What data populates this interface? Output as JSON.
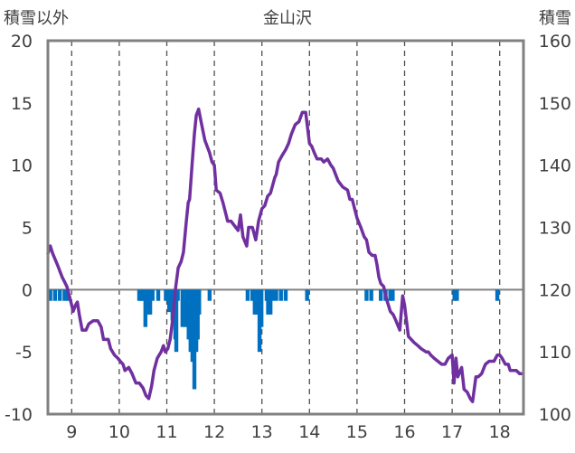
{
  "chart_data": {
    "type": "bar+line",
    "title": "金山沢",
    "left_axis_label": "積雪以外",
    "right_axis_label": "積雪",
    "left_ylim": [
      -10,
      20
    ],
    "left_ticks": [
      "-10",
      "-5",
      "0",
      "5",
      "10",
      "15",
      "20"
    ],
    "right_ylim": [
      100,
      160
    ],
    "right_ticks": [
      "100",
      "110",
      "120",
      "130",
      "140",
      "150",
      "160"
    ],
    "xlim": [
      8.5,
      18.5
    ],
    "x_ticks": [
      "9",
      "10",
      "11",
      "12",
      "13",
      "14",
      "15",
      "16",
      "17",
      "18"
    ],
    "grid": "dashed vertical",
    "colors": {
      "line": "#7030A0",
      "bars": "#0070C0",
      "frame": "#808080"
    },
    "series": [
      {
        "type": "bar",
        "axis": "left",
        "points": [
          [
            8.55,
            -0.9
          ],
          [
            8.65,
            -0.9
          ],
          [
            8.75,
            -0.9
          ],
          [
            8.85,
            -0.9
          ],
          [
            8.92,
            -0.9
          ],
          [
            10.42,
            -0.9
          ],
          [
            10.46,
            -0.9
          ],
          [
            10.5,
            -0.9
          ],
          [
            10.55,
            -3.0
          ],
          [
            10.6,
            -2.0
          ],
          [
            10.65,
            -2.0
          ],
          [
            10.7,
            -0.9
          ],
          [
            10.82,
            -0.9
          ],
          [
            10.98,
            -0.9
          ],
          [
            11.05,
            -1.8
          ],
          [
            11.12,
            -2.5
          ],
          [
            11.18,
            -4.0
          ],
          [
            11.2,
            -5.0
          ],
          [
            11.23,
            -0.9
          ],
          [
            11.33,
            -3.0
          ],
          [
            11.38,
            -3.0
          ],
          [
            11.42,
            -3.0
          ],
          [
            11.46,
            -4.0
          ],
          [
            11.5,
            -5.0
          ],
          [
            11.54,
            -5.8
          ],
          [
            11.58,
            -8.0
          ],
          [
            11.62,
            -5.0
          ],
          [
            11.65,
            -4.0
          ],
          [
            11.68,
            -2.0
          ],
          [
            11.9,
            -0.9
          ],
          [
            12.7,
            -0.9
          ],
          [
            12.8,
            -0.9
          ],
          [
            12.85,
            -2.0
          ],
          [
            12.9,
            -2.0
          ],
          [
            12.95,
            -5.0
          ],
          [
            12.99,
            -3.0
          ],
          [
            13.1,
            -0.9
          ],
          [
            13.13,
            -2.0
          ],
          [
            13.18,
            -2.0
          ],
          [
            13.22,
            -0.9
          ],
          [
            13.3,
            -0.9
          ],
          [
            13.4,
            -0.9
          ],
          [
            13.5,
            -0.9
          ],
          [
            13.95,
            -0.9
          ],
          [
            15.2,
            -0.9
          ],
          [
            15.3,
            -0.9
          ],
          [
            15.5,
            -0.9
          ],
          [
            15.6,
            -0.9
          ],
          [
            15.7,
            -0.9
          ],
          [
            15.75,
            -0.9
          ],
          [
            17.05,
            -0.9
          ],
          [
            17.1,
            -0.9
          ],
          [
            17.95,
            -0.9
          ]
        ]
      },
      {
        "type": "line",
        "axis": "right",
        "points": [
          [
            8.5,
            125.8
          ],
          [
            8.55,
            127.0
          ],
          [
            8.6,
            125.8
          ],
          [
            8.7,
            124.0
          ],
          [
            8.8,
            122.0
          ],
          [
            8.9,
            120.5
          ],
          [
            8.95,
            119.0
          ],
          [
            9.0,
            117.5
          ],
          [
            9.03,
            116.5
          ],
          [
            9.08,
            117.5
          ],
          [
            9.12,
            118.0
          ],
          [
            9.16,
            116.0
          ],
          [
            9.22,
            113.5
          ],
          [
            9.3,
            113.5
          ],
          [
            9.36,
            114.5
          ],
          [
            9.45,
            115.0
          ],
          [
            9.55,
            115.0
          ],
          [
            9.62,
            114.0
          ],
          [
            9.67,
            112.0
          ],
          [
            9.77,
            112.0
          ],
          [
            9.82,
            110.5
          ],
          [
            9.9,
            109.5
          ],
          [
            9.97,
            109.0
          ],
          [
            10.02,
            108.5
          ],
          [
            10.08,
            108.0
          ],
          [
            10.12,
            107.0
          ],
          [
            10.2,
            107.5
          ],
          [
            10.27,
            106.5
          ],
          [
            10.35,
            105.0
          ],
          [
            10.42,
            105.0
          ],
          [
            10.5,
            104.2
          ],
          [
            10.56,
            103.0
          ],
          [
            10.62,
            102.5
          ],
          [
            10.68,
            104.5
          ],
          [
            10.73,
            107.0
          ],
          [
            10.8,
            109.0
          ],
          [
            10.88,
            110.0
          ],
          [
            10.93,
            111.0
          ],
          [
            10.97,
            110.0
          ],
          [
            11.02,
            110.5
          ],
          [
            11.07,
            112.0
          ],
          [
            11.12,
            115.0
          ],
          [
            11.18,
            120.0
          ],
          [
            11.24,
            123.5
          ],
          [
            11.3,
            124.5
          ],
          [
            11.35,
            126.0
          ],
          [
            11.41,
            131.0
          ],
          [
            11.45,
            134.0
          ],
          [
            11.48,
            134.5
          ],
          [
            11.53,
            140.0
          ],
          [
            11.58,
            145.0
          ],
          [
            11.62,
            148.0
          ],
          [
            11.67,
            149.0
          ],
          [
            11.72,
            147.0
          ],
          [
            11.8,
            144.0
          ],
          [
            11.9,
            142.0
          ],
          [
            11.95,
            140.5
          ],
          [
            12.0,
            140.0
          ],
          [
            12.04,
            136.0
          ],
          [
            12.12,
            135.5
          ],
          [
            12.18,
            134.0
          ],
          [
            12.28,
            131.0
          ],
          [
            12.35,
            131.0
          ],
          [
            12.45,
            130.0
          ],
          [
            12.5,
            129.5
          ],
          [
            12.55,
            132.0
          ],
          [
            12.6,
            128.5
          ],
          [
            12.68,
            127.0
          ],
          [
            12.72,
            130.0
          ],
          [
            12.8,
            130.0
          ],
          [
            12.87,
            128.0
          ],
          [
            12.93,
            131.0
          ],
          [
            13.0,
            133.0
          ],
          [
            13.06,
            133.5
          ],
          [
            13.12,
            135.0
          ],
          [
            13.18,
            135.5
          ],
          [
            13.27,
            138.0
          ],
          [
            13.3,
            138.5
          ],
          [
            13.35,
            140.5
          ],
          [
            13.42,
            141.5
          ],
          [
            13.5,
            142.5
          ],
          [
            13.56,
            143.5
          ],
          [
            13.62,
            145.0
          ],
          [
            13.7,
            146.5
          ],
          [
            13.78,
            147.0
          ],
          [
            13.85,
            148.5
          ],
          [
            13.92,
            148.5
          ],
          [
            13.96,
            146.0
          ],
          [
            14.0,
            143.5
          ],
          [
            14.05,
            143.0
          ],
          [
            14.1,
            142.0
          ],
          [
            14.16,
            141.0
          ],
          [
            14.25,
            141.0
          ],
          [
            14.3,
            140.5
          ],
          [
            14.38,
            141.0
          ],
          [
            14.45,
            140.0
          ],
          [
            14.5,
            139.5
          ],
          [
            14.6,
            137.5
          ],
          [
            14.7,
            136.5
          ],
          [
            14.8,
            136.0
          ],
          [
            14.85,
            134.5
          ],
          [
            14.9,
            134.5
          ],
          [
            15.0,
            131.5
          ],
          [
            15.08,
            130.0
          ],
          [
            15.15,
            128.5
          ],
          [
            15.2,
            128.0
          ],
          [
            15.25,
            126.0
          ],
          [
            15.32,
            125.5
          ],
          [
            15.38,
            125.5
          ],
          [
            15.42,
            124.0
          ],
          [
            15.46,
            122.0
          ],
          [
            15.5,
            121.0
          ],
          [
            15.56,
            120.5
          ],
          [
            15.62,
            118.5
          ],
          [
            15.7,
            116.5
          ],
          [
            15.76,
            116.0
          ],
          [
            15.82,
            115.0
          ],
          [
            15.9,
            113.5
          ],
          [
            15.96,
            119.0
          ],
          [
            16.0,
            117.5
          ],
          [
            16.04,
            115.0
          ],
          [
            16.08,
            112.5
          ],
          [
            16.2,
            111.5
          ],
          [
            16.28,
            111.0
          ],
          [
            16.35,
            110.5
          ],
          [
            16.45,
            110.0
          ],
          [
            16.5,
            110.0
          ],
          [
            16.55,
            109.5
          ],
          [
            16.62,
            109.0
          ],
          [
            16.7,
            108.5
          ],
          [
            16.78,
            108.0
          ],
          [
            16.85,
            108.0
          ],
          [
            16.92,
            109.0
          ],
          [
            17.0,
            109.5
          ],
          [
            17.04,
            105.0
          ],
          [
            17.08,
            109.0
          ],
          [
            17.12,
            106.0
          ],
          [
            17.2,
            107.5
          ],
          [
            17.25,
            104.0
          ],
          [
            17.32,
            103.5
          ],
          [
            17.38,
            102.5
          ],
          [
            17.43,
            102.0
          ],
          [
            17.5,
            106.0
          ],
          [
            17.55,
            106.0
          ],
          [
            17.62,
            106.5
          ],
          [
            17.7,
            108.0
          ],
          [
            17.78,
            108.5
          ],
          [
            17.88,
            108.5
          ],
          [
            17.95,
            109.5
          ],
          [
            18.0,
            109.5
          ],
          [
            18.05,
            109.0
          ],
          [
            18.12,
            108.0
          ],
          [
            18.18,
            108.0
          ],
          [
            18.22,
            107.0
          ],
          [
            18.28,
            107.0
          ],
          [
            18.35,
            107.0
          ],
          [
            18.42,
            106.5
          ],
          [
            18.48,
            106.5
          ]
        ]
      }
    ]
  }
}
